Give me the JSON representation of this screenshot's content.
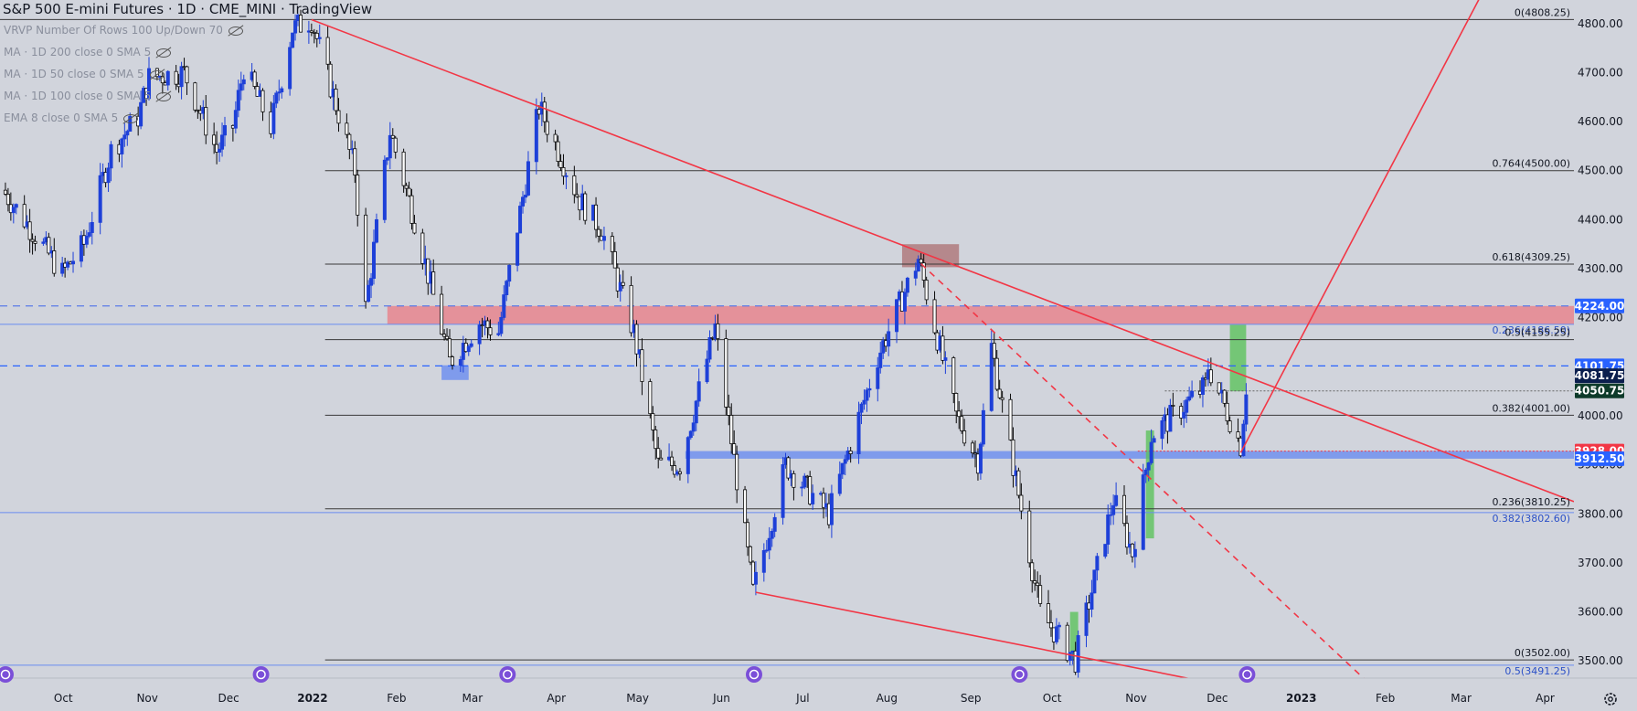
{
  "header": {
    "title": "S&P 500 E-mini Futures · 1D · CME_MINI · TradingView"
  },
  "indicators": [
    "VRVP Number Of Rows 100 Up/Down 70",
    "MA · 1D 200 close 0 SMA 5",
    "MA · 1D 50 close 0 SMA 5",
    "MA · 1D 100 close 0 SMA 5",
    "EMA 8 close 0 SMA 5"
  ],
  "colors": {
    "background": "#d1d4dc",
    "up": "#1e40d8",
    "down": "#0a0a0a",
    "trendline": "#f23645",
    "resistance_zone": "#e8808a",
    "support_zone": "#6a8cf0",
    "buy_zone": "#5cc25c",
    "text": "#131722"
  },
  "chart_data": {
    "type": "candlestick",
    "title": "S&P 500 E-mini Futures · 1D · CME_MINI · TradingView",
    "x_axis": {
      "type": "date",
      "ticks": [
        "Oct",
        "Nov",
        "Dec",
        "2022",
        "Feb",
        "Mar",
        "Apr",
        "May",
        "Jun",
        "Jul",
        "Aug",
        "Sep",
        "Oct",
        "Nov",
        "Dec",
        "2023",
        "Feb",
        "Mar",
        "Apr"
      ],
      "tick_dates": [
        "2021-10-01",
        "2021-11-01",
        "2021-12-01",
        "2022-01-01",
        "2022-02-01",
        "2022-03-01",
        "2022-04-01",
        "2022-05-01",
        "2022-06-01",
        "2022-07-01",
        "2022-08-01",
        "2022-09-01",
        "2022-10-01",
        "2022-11-01",
        "2022-12-01",
        "2023-01-01",
        "2023-02-01",
        "2023-03-01",
        "2023-04-01"
      ],
      "range": [
        "2021-09-11",
        "2023-04-15"
      ]
    },
    "y_axis": {
      "ticks": [
        "4800.00",
        "4700.00",
        "4600.00",
        "4500.00",
        "4400.00",
        "4300.00",
        "4200.00",
        "4100.00",
        "4000.00",
        "3900.00",
        "3800.00",
        "3700.00",
        "3600.00",
        "3500.00"
      ],
      "range": [
        3465,
        4848
      ],
      "position": "right"
    },
    "price_labels": [
      {
        "text": "4224.00",
        "value": 4224,
        "bg": "#2962ff",
        "fg": "#ffffff"
      },
      {
        "text": "4101.75",
        "value": 4101.75,
        "bg": "#2962ff",
        "fg": "#ffffff"
      },
      {
        "text": "4081.75",
        "value": 4081.75,
        "bg": "#0b1f4e",
        "fg": "#ffffff"
      },
      {
        "text": "4050.75",
        "value": 4050.75,
        "bg": "#0d3b2a",
        "fg": "#ffffff"
      },
      {
        "text": "3928.00",
        "value": 3928,
        "bg": "#f23645",
        "fg": "#ffffff"
      },
      {
        "text": "3912.50",
        "value": 3912.5,
        "bg": "#2962ff",
        "fg": "#ffffff"
      }
    ],
    "fib_levels": [
      {
        "label": "0(4808.25)",
        "value": 4808.25,
        "x_start": "2021-09-11"
      },
      {
        "label": "0.764(4500.00)",
        "value": 4500,
        "x_start": "2022-01-09"
      },
      {
        "label": "0.618(4309.25)",
        "value": 4309.25,
        "x_start": "2022-01-09"
      },
      {
        "label": "0.236(4186.50)",
        "value": 4186.5,
        "x_start": "2021-09-11",
        "color": "#6a8cf0"
      },
      {
        "label": "0.5(4155.25)",
        "value": 4155.25,
        "x_start": "2022-01-09"
      },
      {
        "label": "0.382(4001.00)",
        "value": 4001,
        "x_start": "2022-01-09"
      },
      {
        "label": "0.236(3810.25)",
        "value": 3810.25,
        "x_start": "2022-01-09"
      },
      {
        "label": "0.382(3802.60)",
        "value": 3802.6,
        "x_start": "2021-09-11",
        "color": "#6a8cf0"
      },
      {
        "label": "0(3502.00)",
        "value": 3502,
        "x_start": "2022-01-09"
      },
      {
        "label": "0.5(3491.25)",
        "value": 3491.25,
        "x_start": "2021-09-11",
        "color": "#6a8cf0"
      }
    ],
    "dashed_levels": [
      {
        "value": 4224,
        "color": "#5b7be8"
      },
      {
        "value": 4101.75,
        "color": "#2962ff"
      }
    ],
    "zones": [
      {
        "name": "resistance",
        "x": [
          "2022-02-01",
          "2023-04-15"
        ],
        "y": [
          4186.5,
          4224
        ],
        "color": "#e8808a"
      },
      {
        "name": "support",
        "x": [
          "2022-05-22",
          "2023-04-15"
        ],
        "y": [
          3912.5,
          3928
        ],
        "color": "#6a8cf0"
      },
      {
        "name": "aug-high",
        "x": [
          "2022-08-10",
          "2022-08-31"
        ],
        "y": [
          4303,
          4350
        ],
        "color": "#b07a7e"
      },
      {
        "name": "mar-low",
        "x": [
          "2022-02-21",
          "2022-03-03"
        ],
        "y": [
          4073,
          4103
        ],
        "color": "#6a8cf0"
      },
      {
        "name": "oct-low",
        "x": [
          "2022-10-11",
          "2022-10-14"
        ],
        "y": [
          3502,
          3600
        ],
        "color": "#5cc25c"
      },
      {
        "name": "nov-breakout",
        "x": [
          "2022-11-08",
          "2022-11-11"
        ],
        "y": [
          3750,
          3970
        ],
        "color": "#5cc25c"
      },
      {
        "name": "dec-high",
        "x": [
          "2022-12-09",
          "2022-12-15"
        ],
        "y": [
          4050,
          4186
        ],
        "color": "#5cc25c"
      }
    ],
    "trendlines": [
      {
        "x": [
          "2022-01-04",
          "2023-04-15"
        ],
        "y": [
          4808,
          3825
        ],
        "style": "solid"
      },
      {
        "x": [
          "2022-06-17",
          "2022-12-25"
        ],
        "y": [
          3640,
          3430
        ],
        "style": "solid"
      },
      {
        "x": [
          "2022-08-17",
          "2023-02-05"
        ],
        "y": [
          4310,
          3420
        ],
        "style": "dashed"
      },
      {
        "x": [
          "2022-12-13",
          "2023-03-11"
        ],
        "y": [
          3925,
          4850
        ],
        "style": "solid"
      }
    ],
    "dotted_levels": [
      {
        "value": 4050.75,
        "x_start": "2022-11-15",
        "color": "#666666"
      },
      {
        "value": 3928,
        "x_start": "2022-11-05",
        "color": "#f23645"
      }
    ],
    "price_path": [
      [
        "2021-09-12",
        4460
      ],
      [
        "2021-09-20",
        4400
      ],
      [
        "2021-10-04",
        4290
      ],
      [
        "2021-10-12",
        4350
      ],
      [
        "2021-10-22",
        4540
      ],
      [
        "2021-11-01",
        4610
      ],
      [
        "2021-11-05",
        4690
      ],
      [
        "2021-11-18",
        4700
      ],
      [
        "2021-11-30",
        4540
      ],
      [
        "2021-12-06",
        4590
      ],
      [
        "2021-12-10",
        4710
      ],
      [
        "2021-12-20",
        4590
      ],
      [
        "2021-12-28",
        4790
      ],
      [
        "2022-01-04",
        4808
      ],
      [
        "2022-01-20",
        4500
      ],
      [
        "2022-01-24",
        4220
      ],
      [
        "2022-02-02",
        4580
      ],
      [
        "2022-02-11",
        4400
      ],
      [
        "2022-02-24",
        4110
      ],
      [
        "2022-03-07",
        4190
      ],
      [
        "2022-03-14",
        4170
      ],
      [
        "2022-03-29",
        4630
      ],
      [
        "2022-04-13",
        4440
      ],
      [
        "2022-04-21",
        4380
      ],
      [
        "2022-05-03",
        4170
      ],
      [
        "2022-05-12",
        3900
      ],
      [
        "2022-05-20",
        3900
      ],
      [
        "2022-06-02",
        4180
      ],
      [
        "2022-06-16",
        3640
      ],
      [
        "2022-06-28",
        3900
      ],
      [
        "2022-07-14",
        3800
      ],
      [
        "2022-08-01",
        4120
      ],
      [
        "2022-08-16",
        4320
      ],
      [
        "2022-08-30",
        4000
      ],
      [
        "2022-09-07",
        3910
      ],
      [
        "2022-09-12",
        4140
      ],
      [
        "2022-09-30",
        3600
      ],
      [
        "2022-10-13",
        3502
      ],
      [
        "2022-10-27",
        3830
      ],
      [
        "2022-11-03",
        3720
      ],
      [
        "2022-11-10",
        3960
      ],
      [
        "2022-11-30",
        4060
      ],
      [
        "2022-12-01",
        4101
      ],
      [
        "2022-12-13",
        3940
      ],
      [
        "2022-12-15",
        4060
      ]
    ]
  }
}
